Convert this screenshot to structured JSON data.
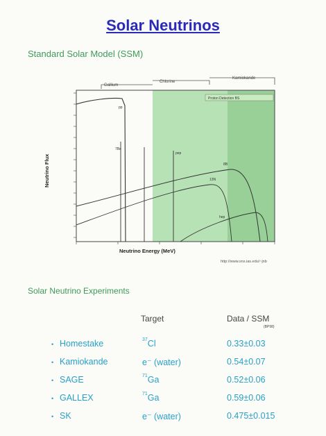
{
  "title": "Solar Neutrinos",
  "ssm_heading": "Standard Solar Model (SSM)",
  "chart_data": {
    "type": "line",
    "xlabel": "Neutrino Energy (MeV)",
    "ylabel": "Neutrino Flux",
    "x_scale": "log",
    "y_scale": "log",
    "threshold_regions": [
      "Gallium",
      "Chlorine",
      "Kamiokande"
    ],
    "spectrum_labels": [
      "pp",
      "7Be",
      "pep",
      "13N",
      "8B",
      "hep"
    ],
    "region_note": "Proton Detection BS",
    "source_url": "http://www.sns.ias.edu/~jnb"
  },
  "experiments_heading": "Solar Neutrino Experiments",
  "columns": {
    "target": "Target",
    "ratio": "Data / SSM",
    "ratio_note": "(BP98)"
  },
  "rows": [
    {
      "name": "Homestake",
      "target_iso": "37",
      "target_el": "Cl",
      "value": "0.33±0.03"
    },
    {
      "name": "Kamiokande",
      "target_iso": "",
      "target_el": "e⁻ (water)",
      "value": "0.54±0.07"
    },
    {
      "name": "SAGE",
      "target_iso": "71",
      "target_el": "Ga",
      "value": "0.52±0.06"
    },
    {
      "name": "GALLEX",
      "target_iso": "71",
      "target_el": "Ga",
      "value": "0.59±0.06"
    },
    {
      "name": "SK",
      "target_iso": "",
      "target_el": "e⁻ (water)",
      "value": "0.475±0.015"
    }
  ],
  "colors": {
    "title": "#2a2ab8",
    "heading": "#3f9a5a",
    "table_text": "#27a0c8",
    "band": "#b7e2b5"
  }
}
